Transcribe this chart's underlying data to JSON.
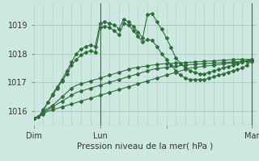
{
  "xlabel": "Pression niveau de la mer( hPa )",
  "background_color": "#cce8e0",
  "grid_color": "#aaccbb",
  "line_color": "#2d6e3a",
  "ylim": [
    1015.5,
    1019.75
  ],
  "xlim": [
    0,
    47
  ],
  "xtick_positions": [
    0,
    14,
    28,
    46
  ],
  "xtick_labels": [
    "Dim",
    "Lun",
    "",
    "Mar"
  ],
  "ytick_positions": [
    1016,
    1017,
    1018,
    1019
  ],
  "ytick_labels": [
    "1016",
    "1017",
    "1018",
    "1019"
  ],
  "vline_positions": [
    14,
    46
  ],
  "series": [
    [
      1015.75,
      1015.8,
      1016.0,
      1016.3,
      1016.6,
      1016.85,
      1017.1,
      1017.4,
      1017.7,
      1018.0,
      1018.15,
      1018.25,
      1018.3,
      1018.25,
      1019.05,
      1019.1,
      1019.05,
      1019.0,
      1018.85,
      1019.2,
      1019.1,
      1018.95,
      1018.75,
      1018.55,
      1019.35,
      1019.4,
      1019.1,
      1018.85,
      1018.55,
      1018.2,
      1017.85,
      1017.65,
      1017.5,
      1017.4,
      1017.35,
      1017.3,
      1017.3,
      1017.35,
      1017.4,
      1017.45,
      1017.5,
      1017.55,
      1017.6,
      1017.65,
      1017.7,
      1017.75,
      1017.8
    ],
    [
      1015.75,
      1015.8,
      1016.05,
      1016.3,
      1016.55,
      1016.8,
      1017.05,
      1017.3,
      1017.6,
      1017.8,
      1017.95,
      1018.05,
      1018.1,
      1018.05,
      1018.9,
      1018.95,
      1018.9,
      1018.8,
      1018.65,
      1019.05,
      1019.0,
      1018.8,
      1018.6,
      1018.4,
      1018.5,
      1018.45,
      1018.25,
      1018.0,
      1017.8,
      1017.6,
      1017.4,
      1017.25,
      1017.15,
      1017.1,
      1017.1,
      1017.1,
      1017.1,
      1017.15,
      1017.2,
      1017.25,
      1017.3,
      1017.35,
      1017.4,
      1017.45,
      1017.5,
      1017.6,
      1017.75
    ],
    [
      1015.75,
      1015.8,
      1016.0,
      1016.1,
      1016.2,
      1016.35,
      1016.5,
      1016.65,
      1016.8,
      1016.9,
      1016.95,
      1017.0,
      1017.05,
      1017.1,
      1017.15,
      1017.2,
      1017.25,
      1017.3,
      1017.35,
      1017.4,
      1017.45,
      1017.5,
      1017.52,
      1017.55,
      1017.57,
      1017.6,
      1017.62,
      1017.64,
      1017.65,
      1017.66,
      1017.67,
      1017.68,
      1017.69,
      1017.7,
      1017.71,
      1017.72,
      1017.73,
      1017.74,
      1017.75,
      1017.76,
      1017.77,
      1017.78,
      1017.79,
      1017.8,
      1017.8,
      1017.8,
      1017.8
    ],
    [
      1015.75,
      1015.8,
      1015.95,
      1016.05,
      1016.15,
      1016.25,
      1016.35,
      1016.45,
      1016.55,
      1016.65,
      1016.7,
      1016.75,
      1016.8,
      1016.85,
      1016.9,
      1016.95,
      1017.0,
      1017.05,
      1017.1,
      1017.15,
      1017.2,
      1017.25,
      1017.3,
      1017.35,
      1017.4,
      1017.45,
      1017.48,
      1017.5,
      1017.52,
      1017.54,
      1017.56,
      1017.58,
      1017.6,
      1017.62,
      1017.63,
      1017.64,
      1017.65,
      1017.66,
      1017.67,
      1017.68,
      1017.69,
      1017.7,
      1017.71,
      1017.72,
      1017.73,
      1017.74,
      1017.75
    ],
    [
      1015.75,
      1015.8,
      1015.9,
      1016.0,
      1016.05,
      1016.1,
      1016.15,
      1016.2,
      1016.25,
      1016.3,
      1016.35,
      1016.4,
      1016.45,
      1016.5,
      1016.55,
      1016.6,
      1016.65,
      1016.7,
      1016.75,
      1016.8,
      1016.85,
      1016.9,
      1016.95,
      1017.0,
      1017.05,
      1017.1,
      1017.15,
      1017.2,
      1017.25,
      1017.3,
      1017.35,
      1017.4,
      1017.45,
      1017.5,
      1017.52,
      1017.54,
      1017.56,
      1017.58,
      1017.6,
      1017.62,
      1017.64,
      1017.66,
      1017.68,
      1017.7,
      1017.72,
      1017.74,
      1017.75
    ]
  ],
  "marker_every": [
    1,
    1,
    2,
    2,
    2
  ]
}
